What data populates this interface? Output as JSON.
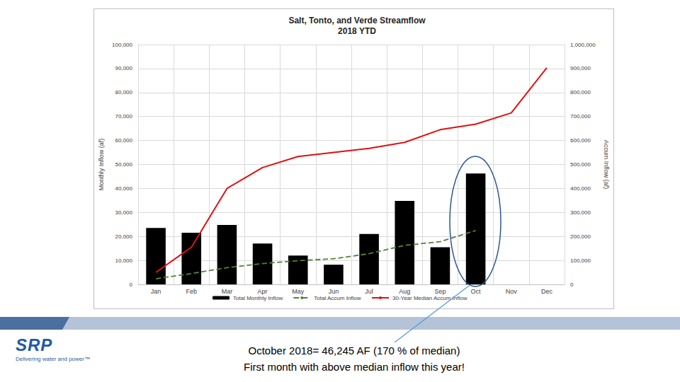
{
  "chart_data": {
    "type": "bar",
    "title": "Salt, Tonto, and Verde Streamflow",
    "subtitle": "2018 YTD",
    "y_label": "Monthly Inflow (af)",
    "y2_label": "Accum Inflow (af)",
    "categories": [
      "Jan",
      "Feb",
      "Mar",
      "Apr",
      "May",
      "Jun",
      "Jul",
      "Aug",
      "Sep",
      "Oct",
      "Nov",
      "Dec"
    ],
    "series": [
      {
        "name": "Total Monthly Inflow",
        "type": "bar",
        "color": "#000000",
        "values": [
          23500,
          21500,
          24800,
          17000,
          12000,
          8200,
          21000,
          34800,
          15500,
          46245,
          null,
          null
        ]
      },
      {
        "name": "Total Accum Inflow",
        "type": "line",
        "axis": "y2",
        "color": "#548235",
        "line_style": "dashed",
        "marker": "none",
        "values": [
          23500,
          45000,
          69800,
          86800,
          98800,
          107000,
          128000,
          162800,
          178300,
          224500,
          null,
          null
        ]
      },
      {
        "name": "30-Year Median Accum Inflow",
        "type": "line",
        "axis": "y2",
        "color": "#e01010",
        "line_style": "solid",
        "marker": "none",
        "values": [
          50000,
          155000,
          400000,
          487000,
          533000,
          550000,
          567000,
          592000,
          645000,
          668000,
          715000,
          903000
        ]
      }
    ],
    "ylim": [
      0,
      100000
    ],
    "yticks": [
      0,
      {
        "value": 10000,
        "label": "10,000"
      },
      {
        "value": 20000,
        "label": "20,000"
      },
      {
        "value": 30000,
        "label": "30,000"
      },
      {
        "value": 40000,
        "label": "40,000"
      },
      {
        "value": 50000,
        "label": "50,000"
      },
      {
        "value": 60000,
        "label": "60,000"
      },
      {
        "value": 70000,
        "label": "70,000"
      },
      {
        "value": 80000,
        "label": "80,000"
      },
      {
        "value": 90000,
        "label": "90,000"
      },
      {
        "value": 100000,
        "label": "100,000"
      }
    ],
    "y2lim": [
      0,
      1000000
    ],
    "y2ticks": [
      0,
      {
        "value": 100000,
        "label": "100,000"
      },
      {
        "value": 200000,
        "label": "200,000"
      },
      {
        "value": 300000,
        "label": "300,000"
      },
      {
        "value": 400000,
        "label": "400,000"
      },
      {
        "value": 500000,
        "label": "500,000"
      },
      {
        "value": 600000,
        "label": "600,000"
      },
      {
        "value": 700000,
        "label": "700,000"
      },
      {
        "value": 800000,
        "label": "800,000"
      },
      {
        "value": 900000,
        "label": "900,000"
      },
      {
        "value": 1000000,
        "label": "1,000,000"
      }
    ],
    "grid": true,
    "legend": "bottom",
    "annotations": [
      "October 2018= 46,245 AF (170 % of median)",
      "First month with above median inflow this year!"
    ]
  },
  "footer": {
    "logo": "SRP",
    "tagline": "Delivering water and power™"
  }
}
